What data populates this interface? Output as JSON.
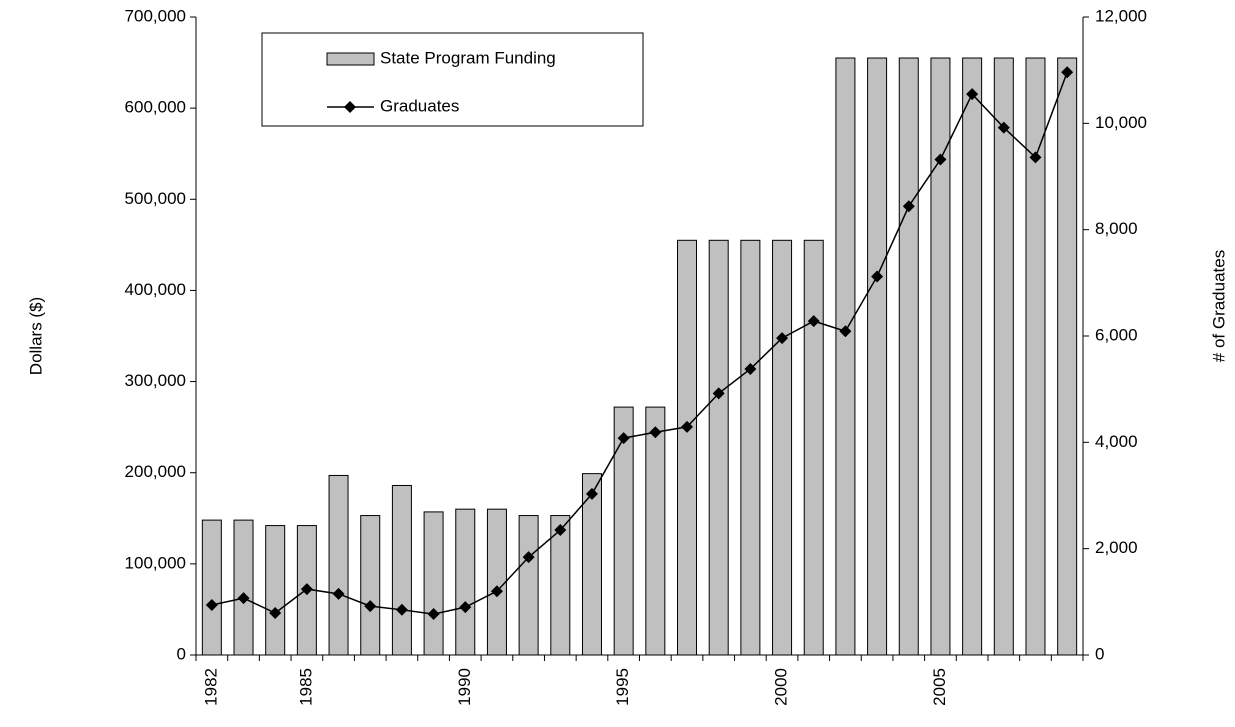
{
  "chart_data": {
    "type": "bar-line",
    "categories": [
      "1982",
      null,
      null,
      "1985",
      null,
      null,
      null,
      null,
      "1990",
      null,
      null,
      null,
      null,
      "1995",
      null,
      null,
      null,
      null,
      "2000",
      null,
      null,
      null,
      null,
      "2005",
      null,
      null,
      null,
      null
    ],
    "series": [
      {
        "name": "State Program Funding",
        "type": "bar",
        "axis": "y",
        "color": "#c0c0c0",
        "values": [
          148000,
          148000,
          142000,
          142000,
          197000,
          153000,
          186000,
          157000,
          160000,
          160000,
          153000,
          153000,
          199000,
          272000,
          272000,
          455000,
          455000,
          455000,
          455000,
          455000,
          655000,
          655000,
          655000,
          655000,
          655000,
          655000,
          655000,
          655000
        ]
      },
      {
        "name": "Graduates",
        "type": "line",
        "axis": "y2",
        "color": "#000000",
        "values": [
          940,
          1070,
          790,
          1240,
          1150,
          920,
          850,
          770,
          900,
          1200,
          1840,
          2350,
          3030,
          4080,
          4190,
          4290,
          4920,
          5380,
          5960,
          6280,
          6090,
          7120,
          8440,
          9320,
          10550,
          9920,
          9360,
          10960
        ]
      }
    ],
    "ylabel": "Dollars ($)",
    "y2label": "# of Graduates",
    "ylim": [
      0,
      700000
    ],
    "yticks": [
      0,
      {
        "value": 100000,
        "label": "100,000"
      },
      {
        "value": 200000,
        "label": "200,000"
      },
      {
        "value": 300000,
        "label": "300,000"
      },
      {
        "value": 400000,
        "label": "400,000"
      },
      {
        "value": 500000,
        "label": "500,000"
      },
      {
        "value": 600000,
        "label": "600,000"
      },
      {
        "value": 700000,
        "label": "700,000"
      }
    ],
    "y2lim": [
      0,
      12000
    ],
    "y2ticks": [
      0,
      {
        "value": 2000,
        "label": "2,000"
      },
      {
        "value": 4000,
        "label": "4,000"
      },
      {
        "value": 6000,
        "label": "6,000"
      },
      {
        "value": 8000,
        "label": "8,000"
      },
      {
        "value": 10000,
        "label": "10,000"
      },
      {
        "value": 12000,
        "label": "12,000"
      }
    ],
    "legend": "top-left"
  }
}
